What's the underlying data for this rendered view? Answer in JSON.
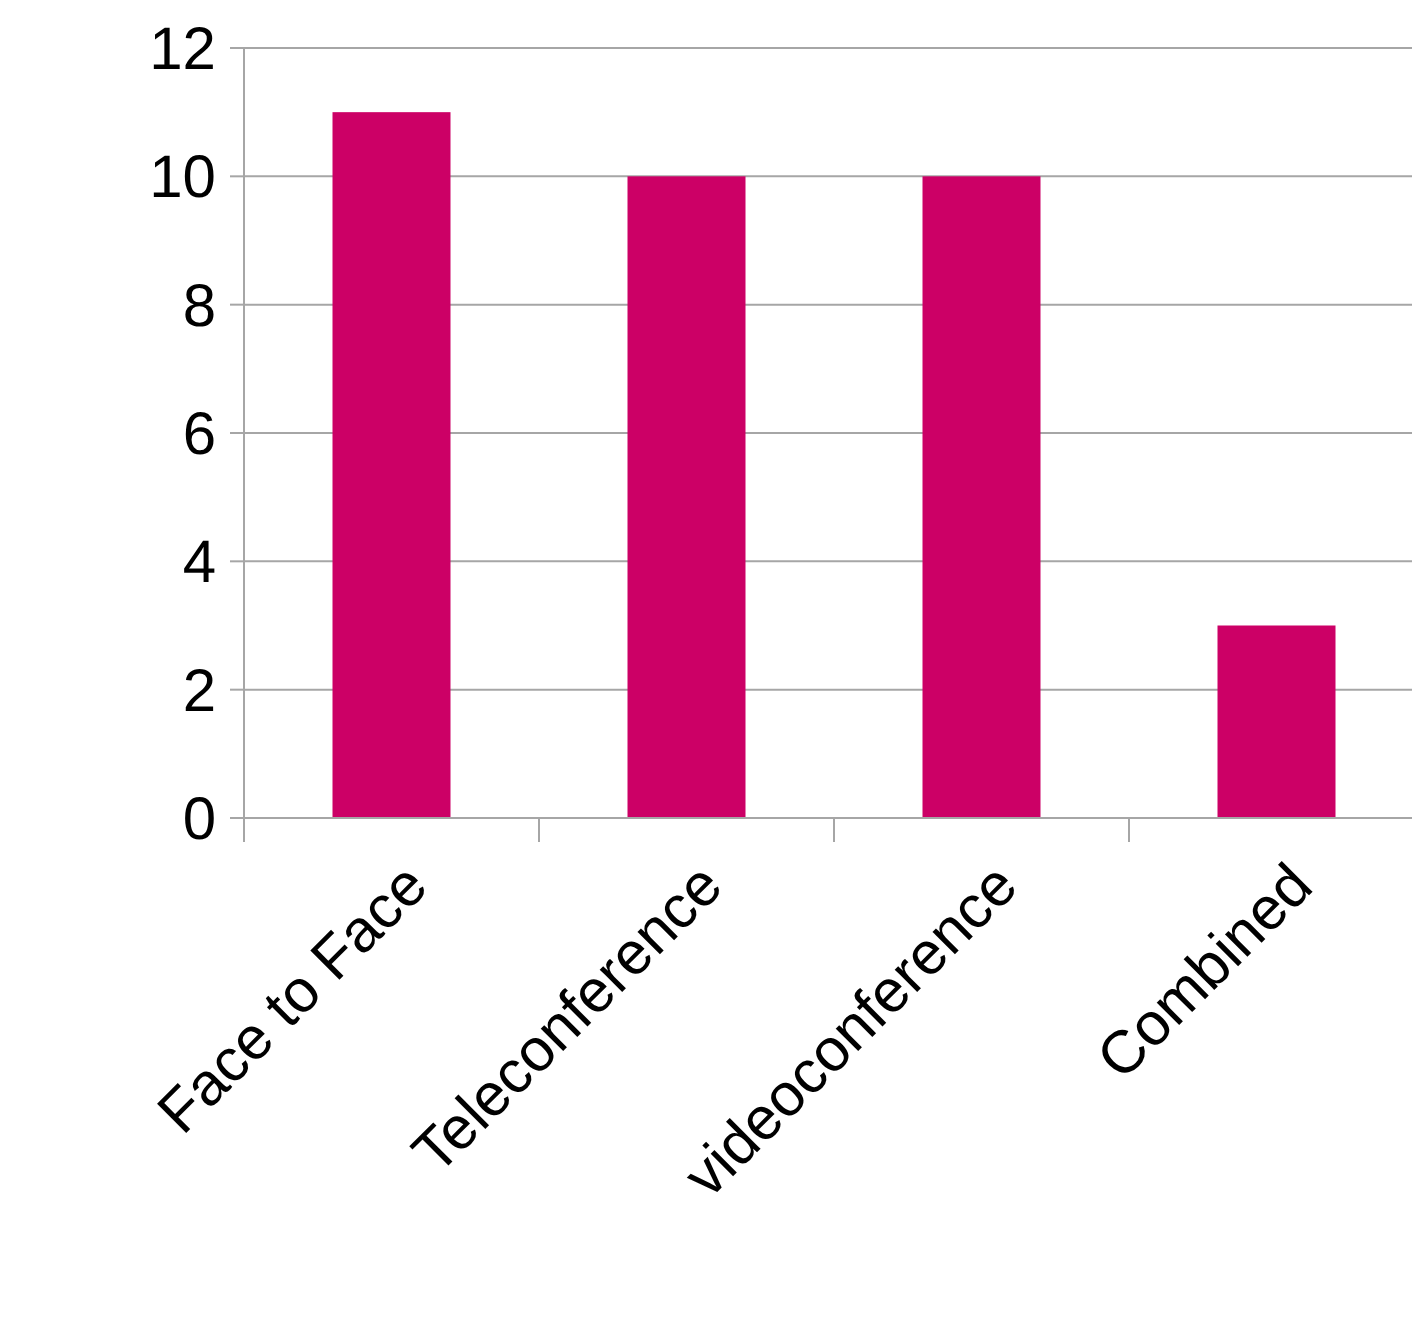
{
  "chart_data": {
    "type": "bar",
    "categories": [
      "Face to Face",
      "Teleconference",
      "videoconference",
      "Combined"
    ],
    "values": [
      11,
      10,
      10,
      3
    ],
    "color": "#cc0066",
    "ylim": [
      0,
      12
    ],
    "yticks": [
      0,
      2,
      4,
      6,
      8,
      10,
      12
    ],
    "grid": "y"
  }
}
